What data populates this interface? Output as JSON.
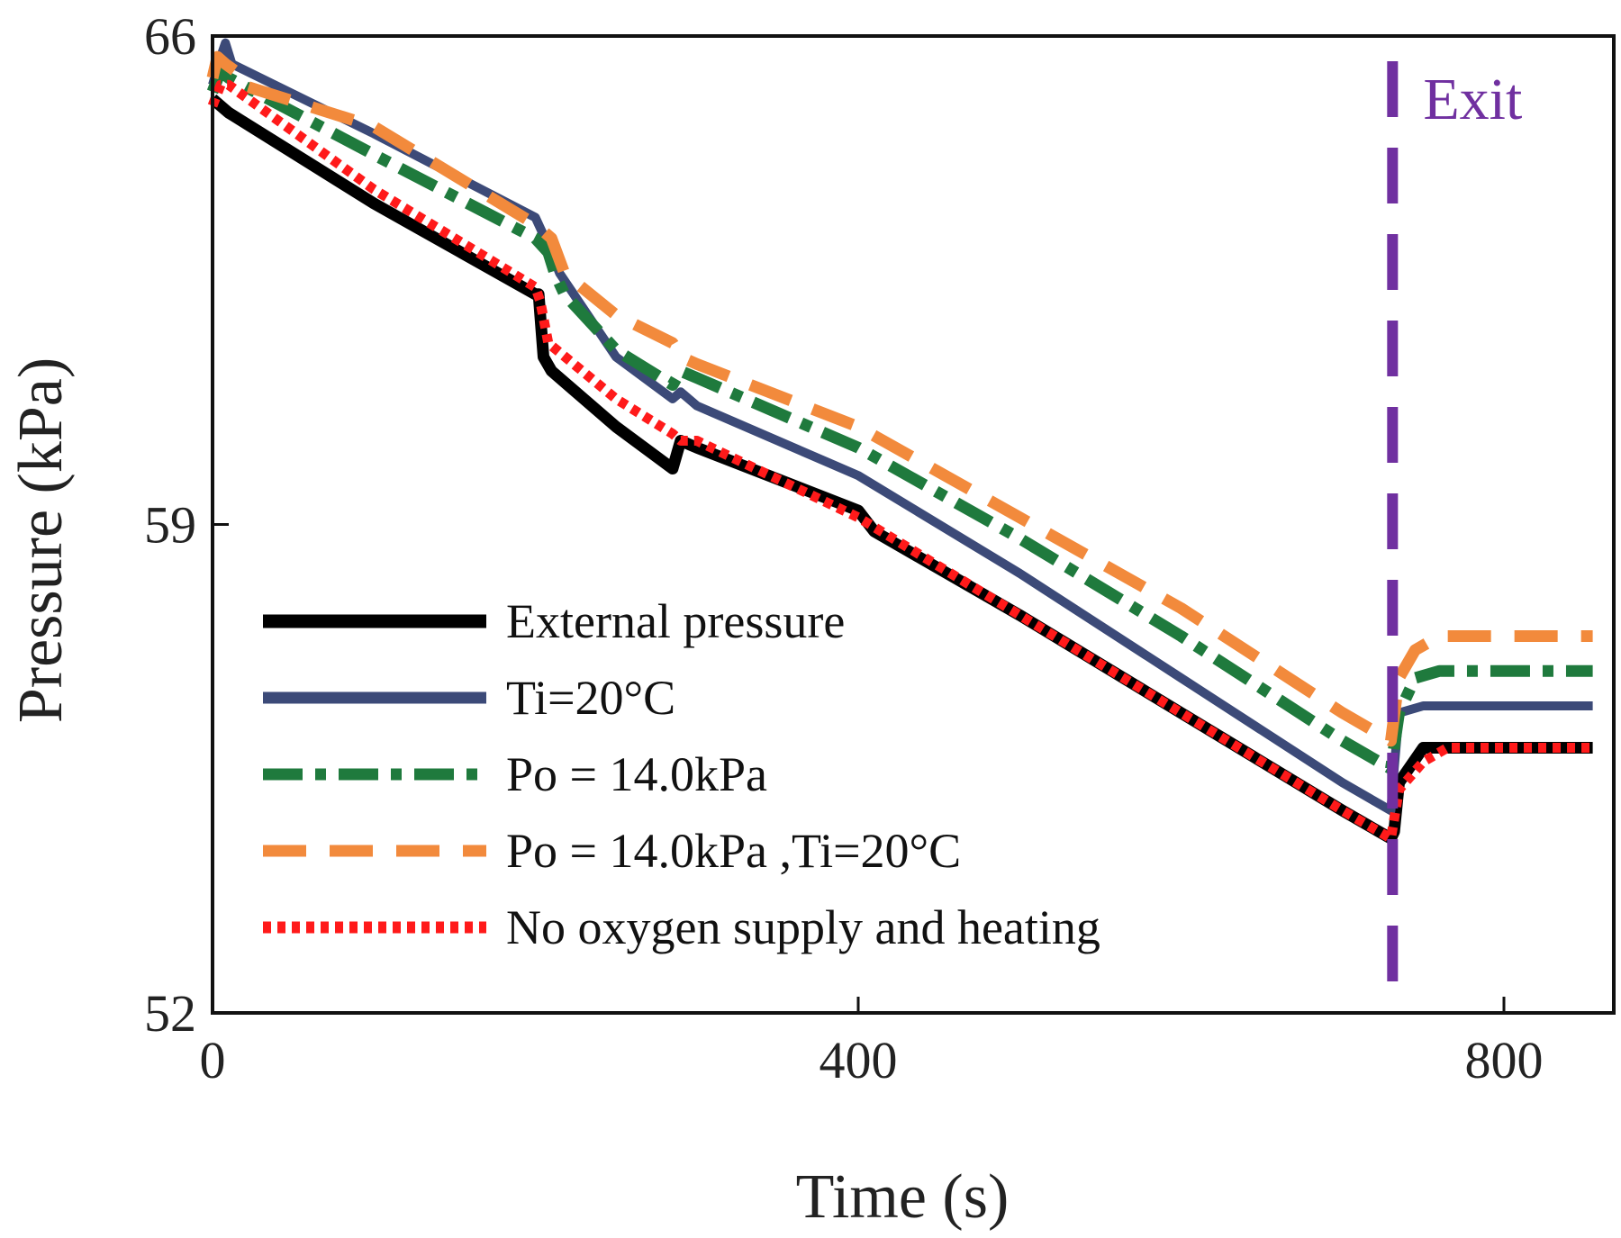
{
  "chart_data": {
    "type": "line",
    "title": "",
    "xlabel": "Time (s)",
    "ylabel": "Pressure (kPa)",
    "xlim": [
      0,
      870
    ],
    "ylim": [
      52,
      66
    ],
    "xticks": [
      0,
      400,
      800
    ],
    "yticks": [
      52,
      59,
      66
    ],
    "xtick_labels": [
      "0",
      "400",
      "800"
    ],
    "ytick_labels": [
      "52",
      "59",
      "66"
    ],
    "grid": false,
    "legend_position": "bottom-left",
    "annotation": {
      "text": "Exit",
      "x": 731,
      "color": "#7030a0"
    },
    "series": [
      {
        "name": "External pressure",
        "color": "#000000",
        "style": "solid",
        "x": [
          0,
          10,
          100,
          200,
          202,
          205,
          210,
          250,
          285,
          290,
          300,
          400,
          410,
          500,
          600,
          700,
          730,
          732,
          735,
          750,
          800,
          855
        ],
        "y": [
          65.1,
          64.9,
          63.6,
          62.3,
          62.3,
          61.4,
          61.2,
          60.4,
          59.8,
          60.2,
          60.1,
          59.2,
          58.9,
          57.7,
          56.3,
          54.9,
          54.5,
          54.6,
          55.3,
          55.8,
          55.8,
          55.8
        ]
      },
      {
        "name": "Ti=20°C",
        "color": "#3c4a78",
        "style": "solid",
        "x": [
          0,
          5,
          8,
          12,
          100,
          200,
          210,
          215,
          250,
          285,
          290,
          300,
          400,
          500,
          600,
          700,
          730,
          732,
          735,
          750,
          800,
          855
        ],
        "y": [
          65.3,
          65.7,
          65.9,
          65.6,
          64.6,
          63.4,
          62.9,
          62.6,
          61.4,
          60.8,
          60.9,
          60.7,
          59.7,
          58.3,
          56.8,
          55.3,
          54.9,
          55.5,
          56.3,
          56.4,
          56.4,
          56.4
        ]
      },
      {
        "name": "Po = 14.0kPa",
        "color": "#1f7a3d",
        "style": "dashdot",
        "x": [
          0,
          5,
          10,
          100,
          200,
          208,
          212,
          218,
          250,
          285,
          290,
          300,
          400,
          500,
          600,
          700,
          730,
          735,
          745,
          760,
          800,
          855
        ],
        "y": [
          65.2,
          65.5,
          65.4,
          64.3,
          63.1,
          62.9,
          62.6,
          62.3,
          61.5,
          61.0,
          61.2,
          61.1,
          60.1,
          58.8,
          57.4,
          55.9,
          55.5,
          56.3,
          56.8,
          56.9,
          56.9,
          56.9
        ]
      },
      {
        "name": "Po = 14.0kPa ,Ti=20°C",
        "color": "#f28a3c",
        "style": "dashed",
        "x": [
          0,
          3,
          8,
          14,
          18,
          100,
          200,
          205,
          210,
          218,
          250,
          285,
          290,
          300,
          400,
          500,
          600,
          700,
          730,
          735,
          745,
          760,
          800,
          855
        ],
        "y": [
          65.4,
          65.7,
          65.6,
          65.5,
          65.3,
          64.7,
          63.3,
          63.2,
          63.1,
          62.6,
          62.0,
          61.6,
          61.4,
          61.3,
          60.4,
          59.1,
          57.8,
          56.3,
          55.9,
          56.8,
          57.2,
          57.4,
          57.4,
          57.4
        ]
      },
      {
        "name": "No oxygen supply and heating",
        "color": "#ff1a1a",
        "style": "dotted",
        "x": [
          0,
          5,
          10,
          100,
          200,
          203,
          208,
          250,
          285,
          290,
          300,
          400,
          500,
          600,
          700,
          730,
          735,
          750,
          765,
          800,
          855
        ],
        "y": [
          65.0,
          65.3,
          65.3,
          63.8,
          62.4,
          62.2,
          61.6,
          60.8,
          60.3,
          60.2,
          60.2,
          59.1,
          57.7,
          56.3,
          54.9,
          54.5,
          55.2,
          55.6,
          55.8,
          55.8,
          55.8
        ]
      }
    ]
  }
}
